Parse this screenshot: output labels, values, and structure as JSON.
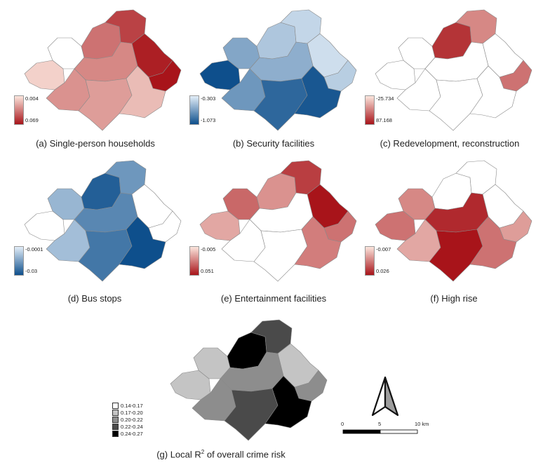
{
  "panels": [
    {
      "id": "a",
      "caption": "(a) Single-person households",
      "legend": {
        "top": "0.004",
        "bottom": "0.069",
        "low_color": "#fbe6dd",
        "high_color": "#a8141a"
      },
      "zones": [
        {
          "name": "west",
          "intensity": 0.1
        },
        {
          "name": "northwest",
          "intensity": 0.0
        },
        {
          "name": "center-north",
          "intensity": 0.55
        },
        {
          "name": "north",
          "intensity": 0.78
        },
        {
          "name": "northeast",
          "intensity": 0.95
        },
        {
          "name": "east",
          "intensity": 1.0
        },
        {
          "name": "center",
          "intensity": 0.45
        },
        {
          "name": "southwest",
          "intensity": 0.4
        },
        {
          "name": "south",
          "intensity": 0.35
        },
        {
          "name": "southeast",
          "intensity": 0.2
        }
      ]
    },
    {
      "id": "b",
      "caption": "(b) Security facilities",
      "legend": {
        "top": "-0.303",
        "bottom": "-1.073",
        "low_color": "#e3eef8",
        "high_color": "#0e4f8c"
      },
      "zones": [
        {
          "name": "west",
          "intensity": 1.0
        },
        {
          "name": "northwest",
          "intensity": 0.45
        },
        {
          "name": "center-north",
          "intensity": 0.25
        },
        {
          "name": "north",
          "intensity": 0.15
        },
        {
          "name": "northeast",
          "intensity": 0.1
        },
        {
          "name": "east",
          "intensity": 0.2
        },
        {
          "name": "center",
          "intensity": 0.4
        },
        {
          "name": "southwest",
          "intensity": 0.55
        },
        {
          "name": "south",
          "intensity": 0.85
        },
        {
          "name": "southeast",
          "intensity": 0.95
        }
      ]
    },
    {
      "id": "c",
      "caption": "(c) Redevelopment, reconstruction",
      "legend": {
        "top": "-25.734",
        "bottom": "87.168",
        "low_color": "#fbe6dd",
        "high_color": "#a8141a"
      },
      "zones": [
        {
          "name": "west",
          "intensity": 0.0
        },
        {
          "name": "northwest",
          "intensity": 0.0
        },
        {
          "name": "center-north",
          "intensity": 0.85
        },
        {
          "name": "north",
          "intensity": 0.45
        },
        {
          "name": "northeast",
          "intensity": 0.0
        },
        {
          "name": "east",
          "intensity": 0.55
        },
        {
          "name": "center",
          "intensity": 0.0
        },
        {
          "name": "southwest",
          "intensity": 0.0
        },
        {
          "name": "south",
          "intensity": 0.0
        },
        {
          "name": "southeast",
          "intensity": 0.0
        }
      ]
    },
    {
      "id": "d",
      "caption": "(d) Bus stops",
      "legend": {
        "top": "-0.0001",
        "bottom": "-0.03",
        "low_color": "#e3eef8",
        "high_color": "#0e4f8c"
      },
      "zones": [
        {
          "name": "west",
          "intensity": 0.0
        },
        {
          "name": "northwest",
          "intensity": 0.35
        },
        {
          "name": "center-north",
          "intensity": 0.9
        },
        {
          "name": "north",
          "intensity": 0.55
        },
        {
          "name": "northeast",
          "intensity": 0.0
        },
        {
          "name": "east",
          "intensity": 0.0
        },
        {
          "name": "center",
          "intensity": 0.65
        },
        {
          "name": "southwest",
          "intensity": 0.3
        },
        {
          "name": "south",
          "intensity": 0.75
        },
        {
          "name": "southeast",
          "intensity": 1.0
        }
      ]
    },
    {
      "id": "e",
      "caption": "(e) Entertainment facilities",
      "legend": {
        "top": "-0.005",
        "bottom": "0.051",
        "low_color": "#fbe6dd",
        "high_color": "#a8141a"
      },
      "zones": [
        {
          "name": "west",
          "intensity": 0.3
        },
        {
          "name": "northwest",
          "intensity": 0.6
        },
        {
          "name": "center-north",
          "intensity": 0.4
        },
        {
          "name": "north",
          "intensity": 0.8
        },
        {
          "name": "northeast",
          "intensity": 1.0
        },
        {
          "name": "east",
          "intensity": 0.55
        },
        {
          "name": "center",
          "intensity": 0.0
        },
        {
          "name": "southwest",
          "intensity": 0.0
        },
        {
          "name": "south",
          "intensity": 0.0
        },
        {
          "name": "southeast",
          "intensity": 0.5
        }
      ]
    },
    {
      "id": "f",
      "caption": "(f) High rise",
      "legend": {
        "top": "-0.007",
        "bottom": "0.026",
        "low_color": "#fbe6dd",
        "high_color": "#a8141a"
      },
      "zones": [
        {
          "name": "west",
          "intensity": 0.55
        },
        {
          "name": "northwest",
          "intensity": 0.45
        },
        {
          "name": "center-north",
          "intensity": 0.0
        },
        {
          "name": "north",
          "intensity": 0.0
        },
        {
          "name": "northeast",
          "intensity": 0.0
        },
        {
          "name": "east",
          "intensity": 0.35
        },
        {
          "name": "center",
          "intensity": 0.9
        },
        {
          "name": "southwest",
          "intensity": 0.3
        },
        {
          "name": "south",
          "intensity": 1.0
        },
        {
          "name": "southeast",
          "intensity": 0.55
        }
      ]
    }
  ],
  "overall": {
    "caption_prefix": "(g) Local R",
    "caption_sup": "2",
    "caption_suffix": " of overall crime risk",
    "classes": [
      {
        "label": "0.14-0.17",
        "color": "#ffffff"
      },
      {
        "label": "0.17-0.20",
        "color": "#c4c4c4"
      },
      {
        "label": "0.20-0.22",
        "color": "#8d8d8d"
      },
      {
        "label": "0.22-0.24",
        "color": "#4a4a4a"
      },
      {
        "label": "0.24-0.27",
        "color": "#000000"
      }
    ],
    "zones": [
      {
        "name": "west",
        "class": 1
      },
      {
        "name": "northwest",
        "class": 1
      },
      {
        "name": "center-north",
        "class": 4
      },
      {
        "name": "north",
        "class": 3
      },
      {
        "name": "northeast",
        "class": 1
      },
      {
        "name": "east",
        "class": 2
      },
      {
        "name": "center",
        "class": 2
      },
      {
        "name": "southwest",
        "class": 2
      },
      {
        "name": "south",
        "class": 3
      },
      {
        "name": "southeast",
        "class": 4
      }
    ]
  },
  "north_arrow": {
    "icon": "north-arrow-icon"
  },
  "scalebar": {
    "labels": [
      "0",
      "5",
      "10 km"
    ]
  }
}
